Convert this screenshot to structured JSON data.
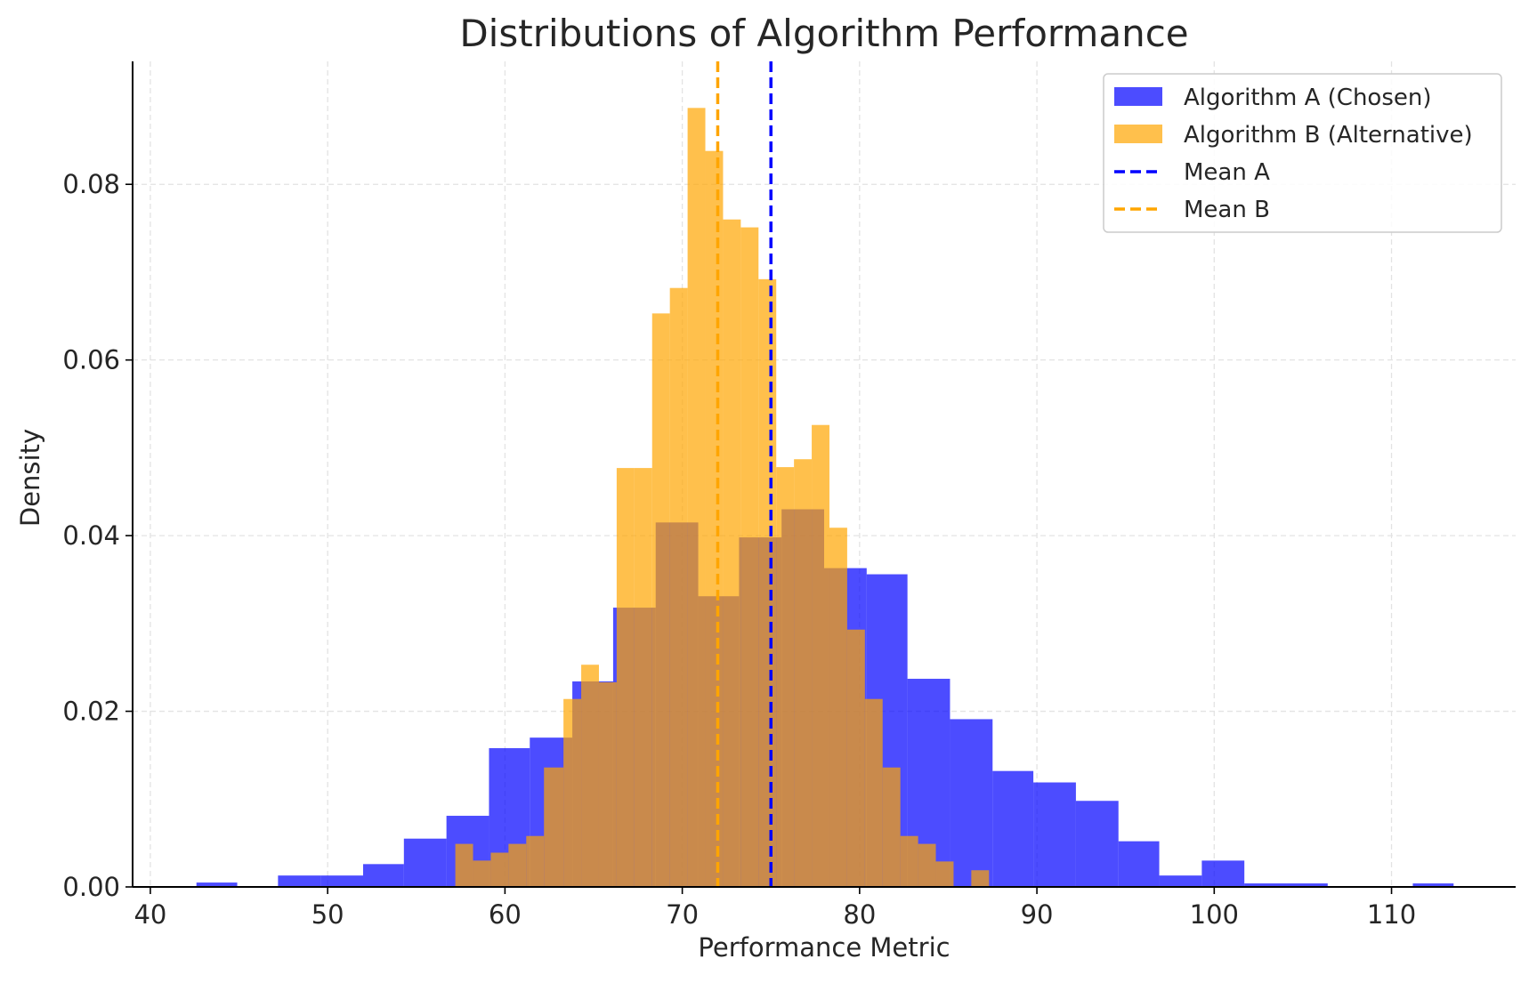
{
  "chart_data": {
    "type": "histogram",
    "title": "Distributions of Algorithm Performance",
    "xlabel": "Performance Metric",
    "ylabel": "Density",
    "xlim": [
      39,
      117
    ],
    "ylim": [
      0,
      0.094
    ],
    "x_ticks": [
      40,
      50,
      60,
      70,
      80,
      90,
      100,
      110
    ],
    "y_ticks": [
      0.0,
      0.02,
      0.04,
      0.06,
      0.08
    ],
    "y_tick_labels": [
      "0.00",
      "0.02",
      "0.04",
      "0.06",
      "0.08"
    ],
    "grid": true,
    "legend_position": "top-right",
    "colors": {
      "algorithm_a": "#0000ff",
      "algorithm_b": "#ffa500",
      "overlap": "#c98a4c"
    },
    "series": [
      {
        "name": "Algorithm A (Chosen)",
        "color": "#0000ff",
        "opacity": 0.7,
        "bin_edges": [
          42.6,
          44.9,
          47.2,
          49.6,
          52.0,
          54.3,
          56.7,
          59.1,
          61.4,
          63.8,
          66.1,
          68.5,
          70.9,
          73.2,
          75.6,
          78.0,
          80.4,
          82.7,
          85.1,
          87.5,
          89.8,
          92.2,
          94.6,
          96.9,
          99.3,
          101.7,
          104.1,
          106.4,
          108.8,
          111.2,
          113.5
        ],
        "densities": [
          0.0005,
          0.0,
          0.0013,
          0.0013,
          0.0026,
          0.0055,
          0.0081,
          0.0158,
          0.017,
          0.0234,
          0.0318,
          0.0415,
          0.0331,
          0.0398,
          0.043,
          0.0363,
          0.0356,
          0.0237,
          0.0191,
          0.0132,
          0.0119,
          0.0098,
          0.0052,
          0.0013,
          0.003,
          0.0004,
          0.0004,
          0.0,
          0.0,
          0.0004
        ]
      },
      {
        "name": "Algorithm B (Alternative)",
        "color": "#ffa500",
        "opacity": 0.7,
        "bin_edges": [
          57.2,
          58.2,
          59.2,
          60.2,
          61.2,
          62.2,
          63.3,
          64.3,
          65.3,
          66.3,
          67.3,
          68.3,
          69.3,
          70.3,
          71.3,
          72.3,
          73.3,
          74.3,
          75.3,
          76.3,
          77.3,
          78.3,
          79.3,
          80.3,
          81.3,
          82.3,
          83.3,
          84.3,
          85.3,
          86.3,
          87.3,
          88.3
        ],
        "densities": [
          0.0049,
          0.003,
          0.0039,
          0.0049,
          0.0058,
          0.0136,
          0.0214,
          0.0253,
          0.0233,
          0.0477,
          0.0477,
          0.0653,
          0.0682,
          0.0887,
          0.0838,
          0.076,
          0.0751,
          0.0692,
          0.0478,
          0.0487,
          0.0526,
          0.0409,
          0.0293,
          0.0214,
          0.0136,
          0.0058,
          0.0049,
          0.0029,
          0.0,
          0.0019,
          0.0
        ]
      }
    ],
    "mean_lines": [
      {
        "name": "Mean A",
        "x": 75.0,
        "color": "#0000ff"
      },
      {
        "name": "Mean B",
        "x": 72.0,
        "color": "#ffa500"
      }
    ]
  }
}
